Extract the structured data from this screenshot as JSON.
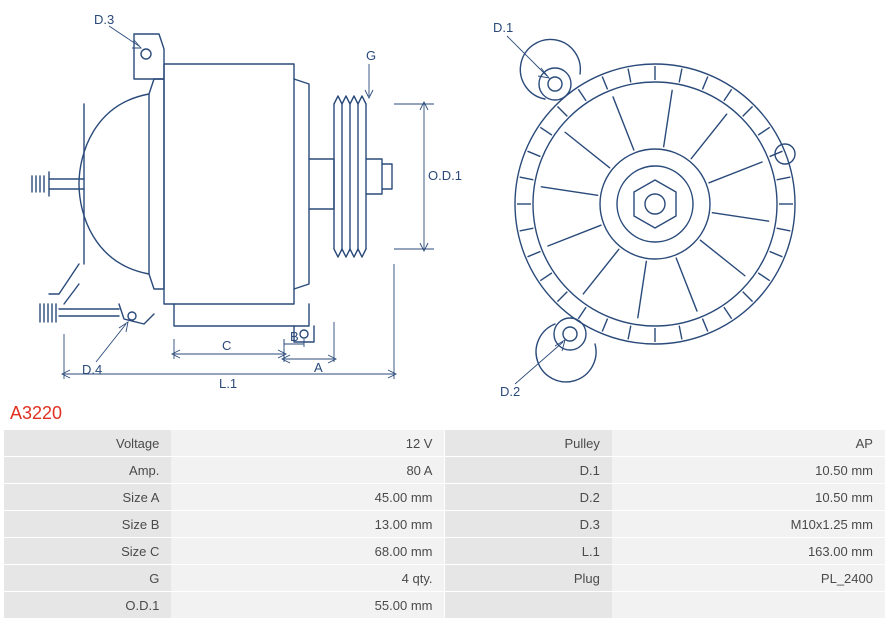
{
  "part_number": "A3220",
  "colors": {
    "title": "#e03020",
    "stroke": "#2a4a7a",
    "labelbg": "#e6e6e6",
    "valuebg": "#f2f2f2",
    "text": "#4a4a4a",
    "bg": "#ffffff"
  },
  "diagram": {
    "side_labels": {
      "d3": "D.3",
      "d4": "D.4",
      "g": "G",
      "od1": "O.D.1",
      "l1": "L.1",
      "c": "C",
      "a": "A",
      "b": "B"
    },
    "front_labels": {
      "d1": "D.1",
      "d2": "D.2"
    },
    "stroke_width": 1.4
  },
  "specs_left": [
    {
      "label": "Voltage",
      "value": "12 V"
    },
    {
      "label": "Amp.",
      "value": "80 A"
    },
    {
      "label": "Size A",
      "value": "45.00 mm"
    },
    {
      "label": "Size B",
      "value": "13.00 mm"
    },
    {
      "label": "Size C",
      "value": "68.00 mm"
    },
    {
      "label": "G",
      "value": "4 qty."
    },
    {
      "label": "O.D.1",
      "value": "55.00 mm"
    }
  ],
  "specs_right": [
    {
      "label": "Pulley",
      "value": "AP"
    },
    {
      "label": "D.1",
      "value": "10.50 mm"
    },
    {
      "label": "D.2",
      "value": "10.50 mm"
    },
    {
      "label": "D.3",
      "value": "M10x1.25 mm"
    },
    {
      "label": "L.1",
      "value": "163.00 mm"
    },
    {
      "label": "Plug",
      "value": "PL_2400"
    },
    {
      "label": "",
      "value": ""
    }
  ]
}
